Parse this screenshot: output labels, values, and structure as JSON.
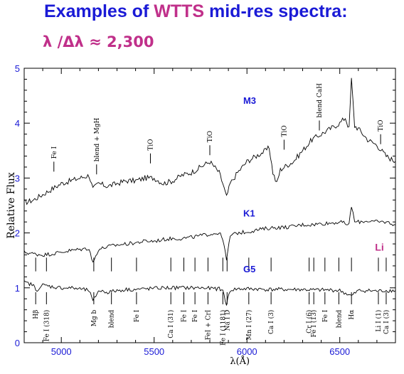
{
  "header": {
    "title_prefix": "Examples of ",
    "title_highlight": "WTTS",
    "title_suffix": " mid-res spectra:",
    "resolution_note": "λ /Δλ ≈ 2,300"
  },
  "chart_data": {
    "type": "line",
    "xlabel": "λ(Å)",
    "ylabel": "Relative Flux",
    "xlim": [
      4800,
      6800
    ],
    "ylim": [
      0,
      5
    ],
    "xticks": [
      5000,
      5500,
      6000,
      6500
    ],
    "yticks": [
      0,
      1,
      2,
      3,
      4,
      5
    ],
    "grid": false,
    "series": [
      {
        "name": "M3",
        "color": "#000000",
        "label_color": "#1a1ad6",
        "x": [
          4800,
          4850,
          4900,
          4950,
          5000,
          5050,
          5100,
          5150,
          5170,
          5200,
          5250,
          5300,
          5350,
          5400,
          5450,
          5500,
          5550,
          5600,
          5650,
          5700,
          5750,
          5800,
          5850,
          5870,
          5890,
          5910,
          5950,
          6000,
          6050,
          6100,
          6120,
          6140,
          6160,
          6180,
          6200,
          6250,
          6300,
          6350,
          6400,
          6450,
          6500,
          6530,
          6550,
          6563,
          6580,
          6600,
          6650,
          6700,
          6750,
          6800
        ],
        "y": [
          2.55,
          2.6,
          2.7,
          2.8,
          2.9,
          2.95,
          3.0,
          3.05,
          2.8,
          2.9,
          2.85,
          2.9,
          2.95,
          2.95,
          3.0,
          3.0,
          2.9,
          2.95,
          3.05,
          3.1,
          3.2,
          3.3,
          3.1,
          2.9,
          2.65,
          2.9,
          3.1,
          3.3,
          3.4,
          3.5,
          3.55,
          3.1,
          2.9,
          3.15,
          3.2,
          3.3,
          3.5,
          3.7,
          3.8,
          3.9,
          4.0,
          4.1,
          3.9,
          4.8,
          3.95,
          3.9,
          3.7,
          3.6,
          3.4,
          3.3
        ]
      },
      {
        "name": "K1",
        "color": "#000000",
        "label_color": "#1a1ad6",
        "x": [
          4800,
          4850,
          4900,
          4950,
          5000,
          5050,
          5100,
          5150,
          5170,
          5200,
          5250,
          5300,
          5350,
          5400,
          5450,
          5500,
          5550,
          5600,
          5650,
          5700,
          5750,
          5800,
          5850,
          5870,
          5890,
          5910,
          5950,
          6000,
          6050,
          6100,
          6150,
          6200,
          6250,
          6300,
          6350,
          6400,
          6450,
          6500,
          6550,
          6563,
          6580,
          6600,
          6650,
          6700,
          6750,
          6800
        ],
        "y": [
          1.65,
          1.62,
          1.6,
          1.62,
          1.65,
          1.68,
          1.7,
          1.72,
          1.45,
          1.7,
          1.75,
          1.78,
          1.8,
          1.82,
          1.85,
          1.85,
          1.88,
          1.9,
          1.9,
          1.92,
          1.95,
          1.98,
          2.0,
          1.9,
          1.5,
          1.95,
          2.0,
          2.02,
          2.05,
          2.08,
          2.1,
          2.1,
          2.12,
          2.15,
          2.15,
          2.17,
          2.18,
          2.2,
          2.15,
          2.5,
          2.2,
          2.2,
          2.22,
          2.2,
          2.2,
          2.15
        ]
      },
      {
        "name": "G5",
        "color": "#000000",
        "label_color": "#1a1ad6",
        "x": [
          4800,
          4850,
          4862,
          4900,
          4950,
          5000,
          5050,
          5100,
          5150,
          5170,
          5200,
          5250,
          5300,
          5350,
          5400,
          5450,
          5500,
          5550,
          5600,
          5650,
          5700,
          5750,
          5800,
          5850,
          5870,
          5890,
          5910,
          5950,
          6000,
          6050,
          6100,
          6150,
          6200,
          6250,
          6300,
          6350,
          6400,
          6450,
          6500,
          6563,
          6600,
          6650,
          6700,
          6750,
          6800
        ],
        "y": [
          1.1,
          1.05,
          0.95,
          1.05,
          1.02,
          1.0,
          1.0,
          0.98,
          0.95,
          0.75,
          0.95,
          0.92,
          0.95,
          0.97,
          0.97,
          0.98,
          0.99,
          1.0,
          1.0,
          1.0,
          1.0,
          1.0,
          0.99,
          0.98,
          0.95,
          0.7,
          0.96,
          0.98,
          0.98,
          0.98,
          0.97,
          0.97,
          0.97,
          0.97,
          0.97,
          0.96,
          0.96,
          0.96,
          0.95,
          0.85,
          0.95,
          0.95,
          0.94,
          0.95,
          0.95
        ]
      }
    ],
    "series_labels": [
      {
        "series": "M3",
        "x": 5980,
        "y": 4.35
      },
      {
        "series": "K1",
        "x": 5980,
        "y": 2.3
      },
      {
        "series": "G5",
        "x": 5980,
        "y": 1.28
      }
    ],
    "annotations": [
      {
        "text": "Li",
        "x": 6690,
        "y": 1.68,
        "color": "#c0308a"
      }
    ],
    "top_feature_labels": [
      {
        "text": "Fe I",
        "x": 4960,
        "y": 3.35
      },
      {
        "text": "blend + MgH",
        "x": 5190,
        "y": 3.3
      },
      {
        "text": "TiO",
        "x": 5480,
        "y": 3.5
      },
      {
        "text": "TiO",
        "x": 5800,
        "y": 3.65
      },
      {
        "text": "TiO",
        "x": 6200,
        "y": 3.75
      },
      {
        "text": "blend CaH",
        "x": 6390,
        "y": 4.1
      },
      {
        "text": "TiO",
        "x": 6720,
        "y": 3.85
      }
    ],
    "bottom_feature_labels": [
      {
        "text": "Hβ",
        "x": 4862
      },
      {
        "text": "Fe I (318)",
        "x": 4920
      },
      {
        "text": "Mg b",
        "x": 5175
      },
      {
        "text": "blend",
        "x": 5270
      },
      {
        "text": "Fe I",
        "x": 5405
      },
      {
        "text": "Ca I (31)",
        "x": 5590
      },
      {
        "text": "Fe I",
        "x": 5660
      },
      {
        "text": "Fe I",
        "x": 5720
      },
      {
        "text": "FeI + CrI",
        "x": 5790
      },
      {
        "text": "Fe I (1181)",
        "x": 5870
      },
      {
        "text": "Na I D",
        "x": 5893
      },
      {
        "text": "Mn I (27)",
        "x": 6010
      },
      {
        "text": "Ca I (3)",
        "x": 6130
      },
      {
        "text": "Cr I (6)",
        "x": 6335
      },
      {
        "text": "Fe I (13)",
        "x": 6360
      },
      {
        "text": "Fe I",
        "x": 6420
      },
      {
        "text": "blend",
        "x": 6495
      },
      {
        "text": "Hα",
        "x": 6563
      },
      {
        "text": "Li I (1)",
        "x": 6708
      },
      {
        "text": "Ca I (3)",
        "x": 6750
      }
    ]
  }
}
